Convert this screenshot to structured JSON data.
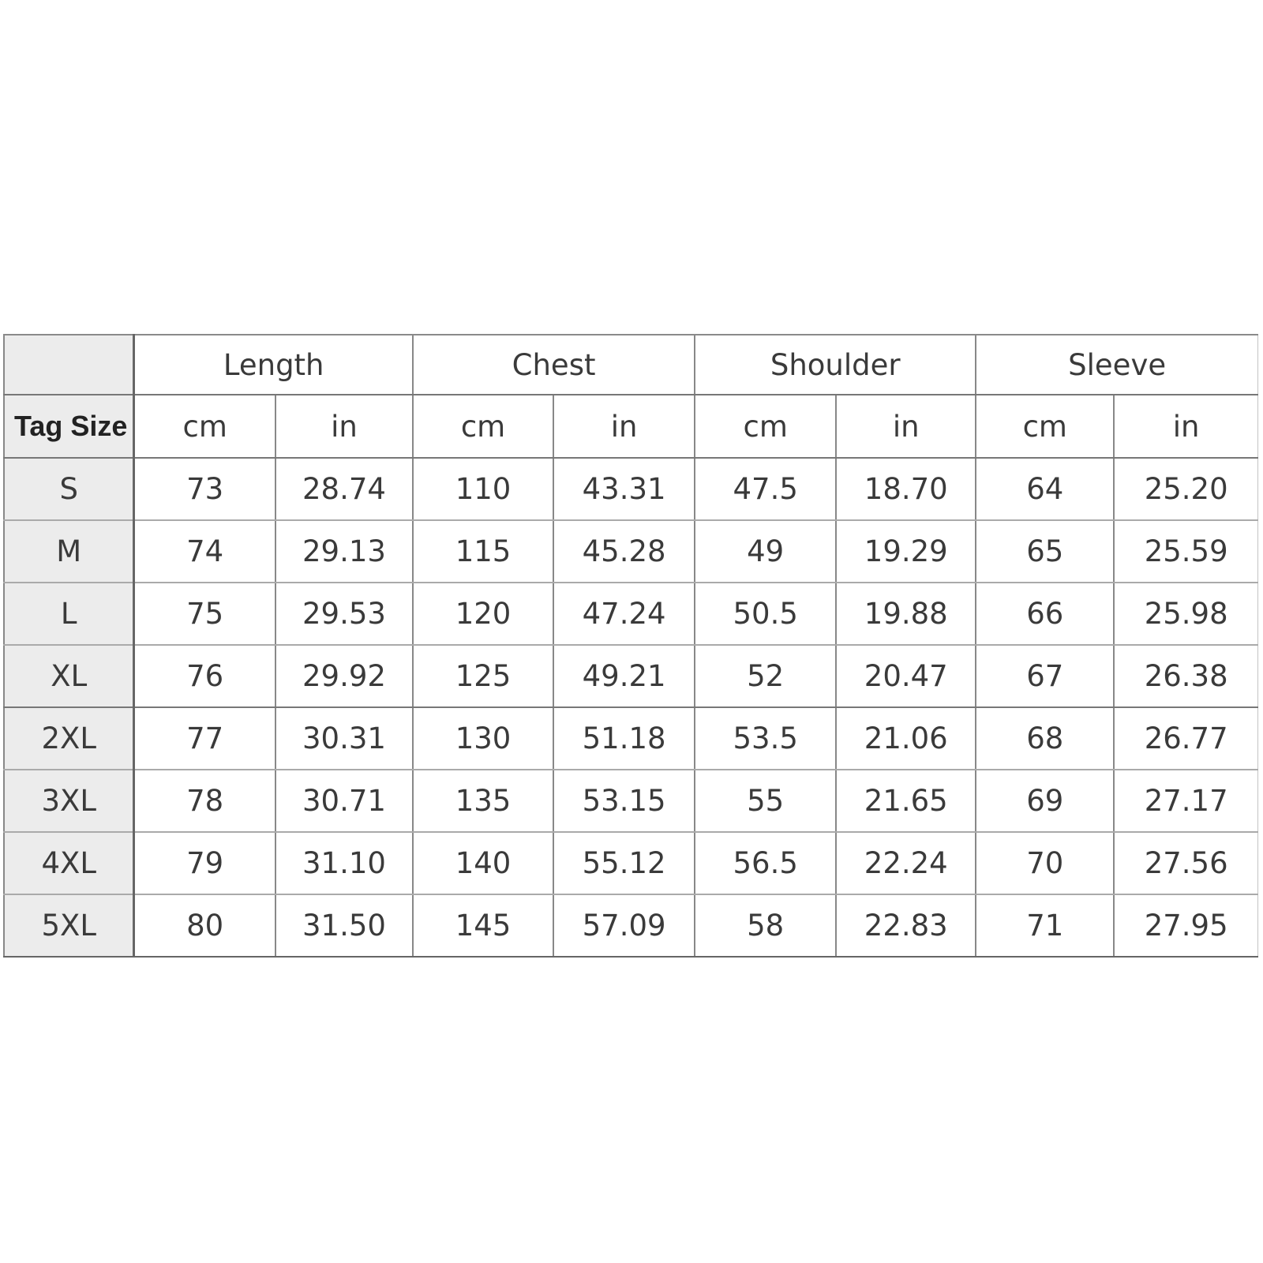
{
  "table": {
    "corner_label": "Tag Size",
    "groups": [
      "Length",
      "Chest",
      "Shoulder",
      "Sleeve"
    ],
    "units": [
      "cm",
      "in"
    ],
    "rows": [
      {
        "size": "S",
        "values": [
          "73",
          "28.74",
          "110",
          "43.31",
          "47.5",
          "18.70",
          "64",
          "25.20"
        ]
      },
      {
        "size": "M",
        "values": [
          "74",
          "29.13",
          "115",
          "45.28",
          "49",
          "19.29",
          "65",
          "25.59"
        ]
      },
      {
        "size": "L",
        "values": [
          "75",
          "29.53",
          "120",
          "47.24",
          "50.5",
          "19.88",
          "66",
          "25.98"
        ]
      },
      {
        "size": "XL",
        "values": [
          "76",
          "29.92",
          "125",
          "49.21",
          "52",
          "20.47",
          "67",
          "26.38"
        ]
      },
      {
        "size": "2XL",
        "values": [
          "77",
          "30.31",
          "130",
          "51.18",
          "53.5",
          "21.06",
          "68",
          "26.77"
        ]
      },
      {
        "size": "3XL",
        "values": [
          "78",
          "30.71",
          "135",
          "53.15",
          "55",
          "21.65",
          "69",
          "27.17"
        ]
      },
      {
        "size": "4XL",
        "values": [
          "79",
          "31.10",
          "140",
          "55.12",
          "56.5",
          "22.24",
          "70",
          "27.56"
        ]
      },
      {
        "size": "5XL",
        "values": [
          "80",
          "31.50",
          "145",
          "57.09",
          "58",
          "22.83",
          "71",
          "27.95"
        ]
      }
    ]
  }
}
